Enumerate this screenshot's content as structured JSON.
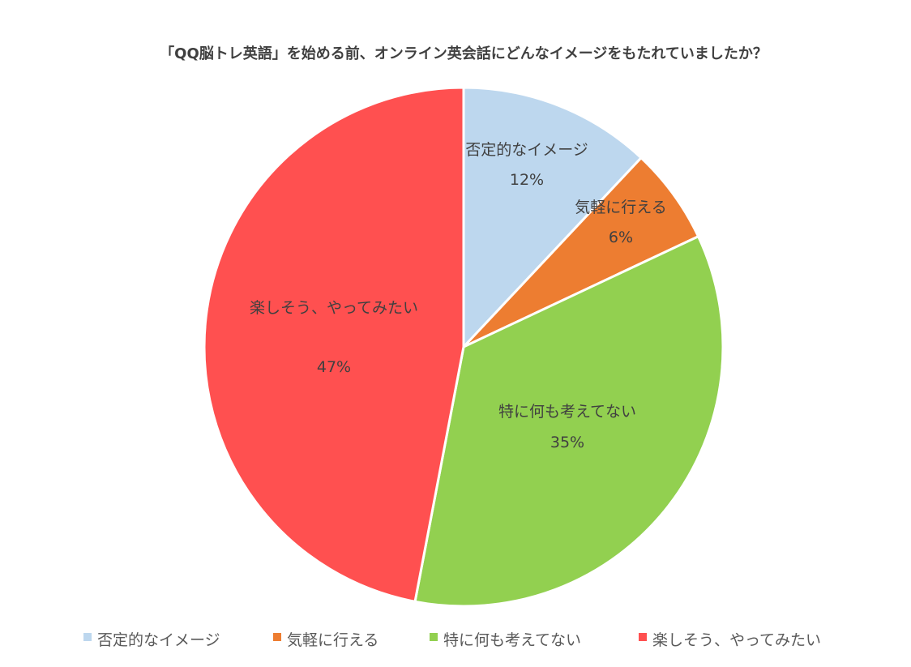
{
  "chart_data": {
    "type": "pie",
    "title": "「QQ脳トレ英語」を始める前、オンライン英会話にどんなイメージをもたれていましたか？",
    "categories": [
      "否定的なイメージ",
      "気軽に行える",
      "特に何も考えてない",
      "楽しそう、やってみたい"
    ],
    "values": [
      12,
      6,
      35,
      47
    ],
    "value_labels": [
      "12%",
      "6%",
      "35%",
      "47%"
    ],
    "colors": [
      "#BDD7EE",
      "#ED7D31",
      "#92D050",
      "#FF5050"
    ],
    "legend": {
      "position": "bottom",
      "entries": [
        "否定的なイメージ",
        "気軽に行える",
        "特に何も考えてない",
        "楽しそう、やってみたい"
      ]
    },
    "start_angle": "12 o'clock",
    "direction": "clockwise"
  }
}
